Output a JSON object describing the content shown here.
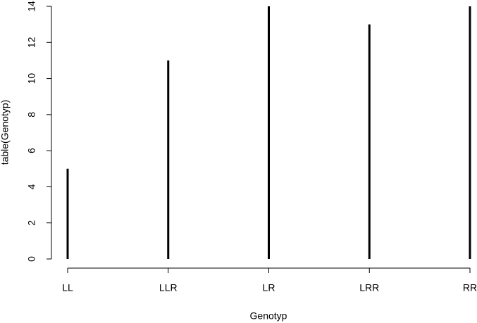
{
  "chart_data": {
    "type": "bar",
    "categories": [
      "LL",
      "LLR",
      "LR",
      "LRR",
      "RR"
    ],
    "values": [
      5,
      11,
      14,
      13,
      14
    ],
    "color": "#000000",
    "xlabel": "Genotyp",
    "ylabel": "table(Genotyp)",
    "ylim": [
      0,
      14
    ],
    "yticks": [
      0,
      2,
      4,
      6,
      8,
      10,
      12,
      14
    ]
  }
}
